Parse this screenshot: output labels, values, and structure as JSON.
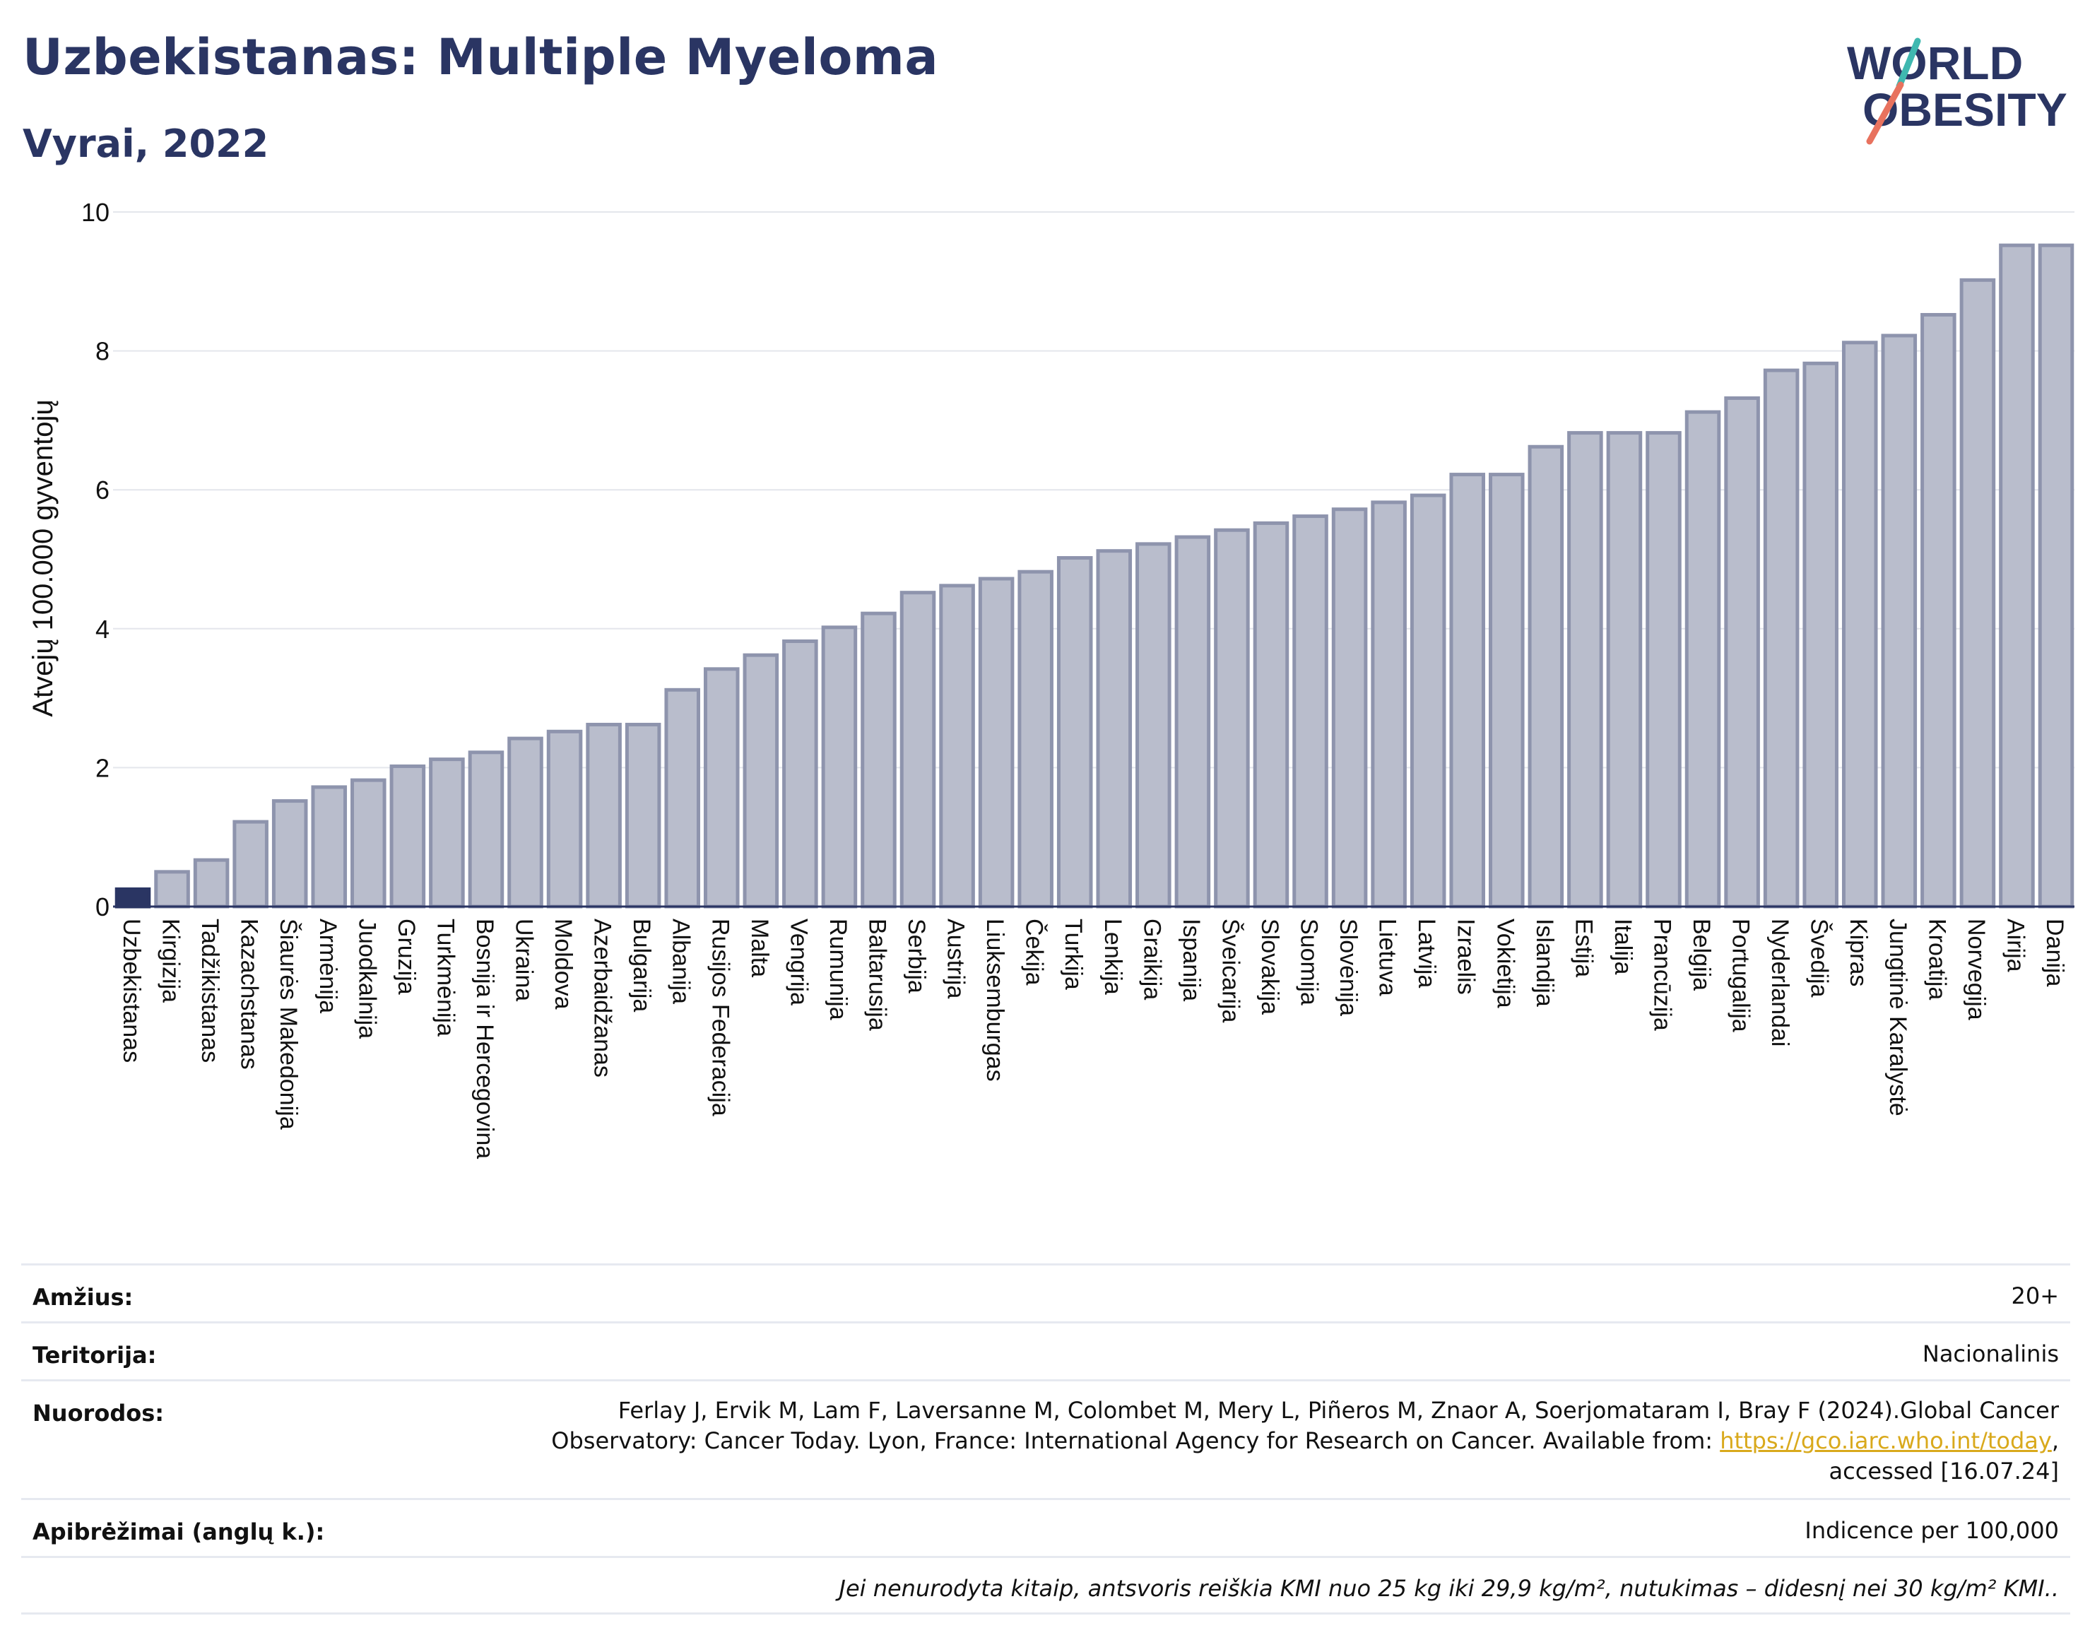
{
  "header": {
    "title": "Uzbekistanas: Multiple Myeloma",
    "subtitle": "Vyrai, 2022"
  },
  "logo": {
    "line1": "WORLD",
    "line2": "OBESITY",
    "colors": [
      "#2a3563",
      "#3fb8b0",
      "#e8725e"
    ]
  },
  "colors": {
    "highlight_bar": "#2a3563",
    "bar_fill": "#b9bdcc",
    "bar_stroke": "#8e94ad",
    "gridline": "#e4e6ec",
    "title": "#2a3563"
  },
  "chart_data": {
    "type": "bar",
    "ylabel": "Atvejų 100.000 gyventojų",
    "ylim": [
      0,
      10
    ],
    "yticks": [
      0,
      2,
      4,
      6,
      8,
      10
    ],
    "grid": true,
    "highlight": "Uzbekistanas",
    "categories": [
      "Uzbekistanas",
      "Kirgizija",
      "Tadžikistanas",
      "Kazachstanas",
      "Šiaurės Makedonija",
      "Armėnija",
      "Juodkalnija",
      "Gruzija",
      "Turkmėnija",
      "Bosnija ir Hercegovina",
      "Ukraina",
      "Moldova",
      "Azerbaidžanas",
      "Bulgarija",
      "Albanija",
      "Rusijos Federacija",
      "Malta",
      "Vengrija",
      "Rumunija",
      "Baltarusija",
      "Serbija",
      "Austrija",
      "Liuksemburgas",
      "Čekija",
      "Turkija",
      "Lenkija",
      "Graikija",
      "Ispanija",
      "Šveicarija",
      "Slovakija",
      "Suomija",
      "Slovėnija",
      "Lietuva",
      "Latvija",
      "Izraelis",
      "Vokietija",
      "Islandija",
      "Estija",
      "Italija",
      "Prancūzija",
      "Belgija",
      "Portugalija",
      "Nyderlandai",
      "Švedija",
      "Kipras",
      "Jungtinė Karalystė",
      "Kroatija",
      "Norvegija",
      "Airija",
      "Danija"
    ],
    "values": [
      0.25,
      0.5,
      0.67,
      1.22,
      1.52,
      1.72,
      1.82,
      2.02,
      2.12,
      2.22,
      2.42,
      2.52,
      2.62,
      2.62,
      3.12,
      3.42,
      3.62,
      3.82,
      4.02,
      4.22,
      4.52,
      4.62,
      4.72,
      4.82,
      5.02,
      5.12,
      5.22,
      5.32,
      5.42,
      5.52,
      5.62,
      5.72,
      5.82,
      5.92,
      6.22,
      6.22,
      6.62,
      6.82,
      6.82,
      6.82,
      7.12,
      7.32,
      7.72,
      7.82,
      8.12,
      8.22,
      8.52,
      9.02,
      9.52,
      9.52
    ]
  },
  "info": {
    "age_label": "Amžius:",
    "age_value": "20+",
    "territory_label": "Teritorija:",
    "territory_value": "Nacionalinis",
    "refs_label": "Nuorodos:",
    "refs_line1": "Ferlay J, Ervik M, Lam F, Laversanne M, Colombet M, Mery L, Piñeros M, Znaor A, Soerjomataram I, Bray F (2024).Global Cancer",
    "refs_line2_pre": "Observatory: Cancer Today. Lyon, France: International Agency for Research on Cancer. Available from: ",
    "refs_link": "https://gco.iarc.who.int/today",
    "refs_line2_post": ",",
    "refs_line3": "accessed [16.07.24]",
    "defs_label": "Apibrėžimai (anglų k.):",
    "defs_value": "Indicence per 100,000",
    "note": "Jei nenurodyta kitaip, antsvoris reiškia KMI nuo 25 kg iki 29,9 kg/m², nutukimas – didesnį nei 30 kg/m² KMI.."
  }
}
